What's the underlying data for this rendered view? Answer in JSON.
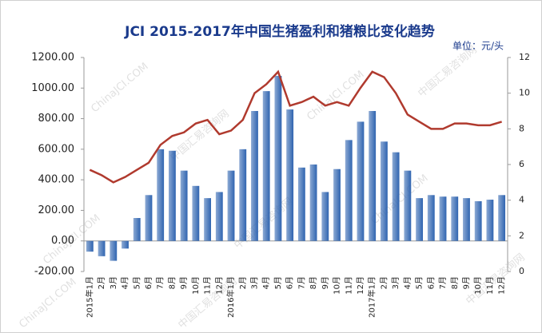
{
  "chart_data": {
    "type": "bar-line",
    "title": "JCI 2015-2017年中国生猪盈利和猪粮比变化趋势",
    "unit": "单位：元/头",
    "watermarks": [
      "ChinaJCI.COM",
      "中国汇易咨询网"
    ],
    "categories": [
      "2015年1月",
      "2月",
      "3月",
      "4月",
      "5月",
      "6月",
      "7月",
      "8月",
      "9月",
      "10月",
      "11月",
      "12月",
      "2016年1月",
      "2月",
      "3月",
      "4月",
      "5月",
      "6月",
      "7月",
      "8月",
      "9月",
      "10月",
      "11月",
      "12月",
      "2017年1月",
      "2月",
      "3月",
      "4月",
      "5月",
      "6月",
      "7月",
      "8月",
      "9月",
      "10月",
      "11月",
      "12月"
    ],
    "series": [
      {
        "color": "#2f64b0",
        "values": [
          -70,
          -100,
          -130,
          -50,
          150,
          300,
          600,
          590,
          460,
          360,
          280,
          320,
          460,
          600,
          850,
          980,
          1080,
          860,
          480,
          500,
          320,
          470,
          660,
          780,
          850,
          650,
          580,
          460,
          280,
          300,
          290,
          290,
          280,
          260,
          270,
          300
        ]
      },
      {
        "color": "#b03a2e",
        "axis": "y2",
        "values": [
          5.7,
          5.4,
          5.0,
          5.3,
          5.7,
          6.1,
          7.1,
          7.6,
          7.8,
          8.3,
          8.5,
          7.7,
          7.9,
          8.5,
          10.0,
          10.5,
          11.2,
          9.3,
          9.5,
          9.8,
          9.3,
          9.5,
          9.3,
          10.3,
          11.2,
          10.9,
          10.0,
          8.8,
          8.4,
          8.0,
          8.0,
          8.3,
          8.3,
          8.2,
          8.2,
          8.4
        ]
      }
    ],
    "ylim": [
      -200,
      1200
    ],
    "yticks": [
      {
        "value": -200,
        "label": "-200.00"
      },
      {
        "value": 0,
        "label": "0.00"
      },
      {
        "value": 200,
        "label": "200.00"
      },
      {
        "value": 400,
        "label": "400.00"
      },
      {
        "value": 600,
        "label": "600.00"
      },
      {
        "value": 800,
        "label": "800.00"
      },
      {
        "value": 1000,
        "label": "1000.00"
      },
      {
        "value": 1200,
        "label": "1200.00"
      }
    ],
    "y2lim": [
      0,
      12
    ],
    "y2ticks": [
      0,
      2,
      4,
      6,
      8,
      10,
      12
    ]
  }
}
